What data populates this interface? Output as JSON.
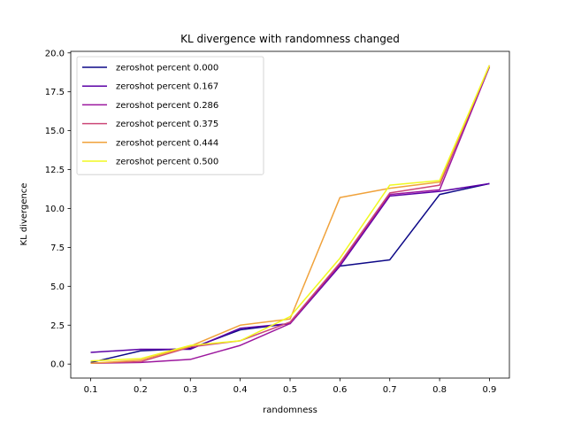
{
  "chart_data": {
    "type": "line",
    "title": "KL divergence with randomness changed",
    "xlabel": "randomness",
    "ylabel": "KL divergence",
    "x": [
      0.1,
      0.2,
      0.3,
      0.4,
      0.5,
      0.6,
      0.7,
      0.8,
      0.9
    ],
    "xlim": [
      0.06,
      0.94
    ],
    "ylim": [
      -0.9,
      20.1
    ],
    "xticks": [
      "0.1",
      "0.2",
      "0.3",
      "0.4",
      "0.5",
      "0.6",
      "0.7",
      "0.8",
      "0.9"
    ],
    "yticks": [
      "0.0",
      "2.5",
      "5.0",
      "7.5",
      "10.0",
      "12.5",
      "15.0",
      "17.5",
      "20.0"
    ],
    "grid": false,
    "legend_position": "upper-left",
    "series": [
      {
        "name": "zeroshot percent 0.000",
        "color": "#0d0887",
        "values": [
          0.1,
          0.85,
          1.0,
          2.2,
          2.6,
          6.3,
          6.7,
          10.9,
          11.6
        ]
      },
      {
        "name": "zeroshot percent 0.167",
        "color": "#5c01a6",
        "values": [
          0.75,
          0.95,
          0.95,
          2.3,
          2.6,
          6.3,
          10.8,
          11.1,
          11.6
        ]
      },
      {
        "name": "zeroshot percent 0.286",
        "color": "#9c179e",
        "values": [
          0.05,
          0.1,
          0.3,
          1.2,
          2.6,
          6.4,
          10.9,
          11.2,
          19.1
        ]
      },
      {
        "name": "zeroshot percent 0.375",
        "color": "#cc4778",
        "values": [
          0.05,
          0.15,
          1.1,
          1.5,
          2.7,
          6.5,
          11.0,
          11.5,
          19.2
        ]
      },
      {
        "name": "zeroshot percent 0.444",
        "color": "#f0a23b",
        "values": [
          0.05,
          0.25,
          1.15,
          2.5,
          2.9,
          10.7,
          11.3,
          11.7,
          19.2
        ]
      },
      {
        "name": "zeroshot percent 0.500",
        "color": "#f0f921",
        "values": [
          0.2,
          0.35,
          1.2,
          1.5,
          3.05,
          6.8,
          11.5,
          11.8,
          19.2
        ]
      }
    ]
  }
}
